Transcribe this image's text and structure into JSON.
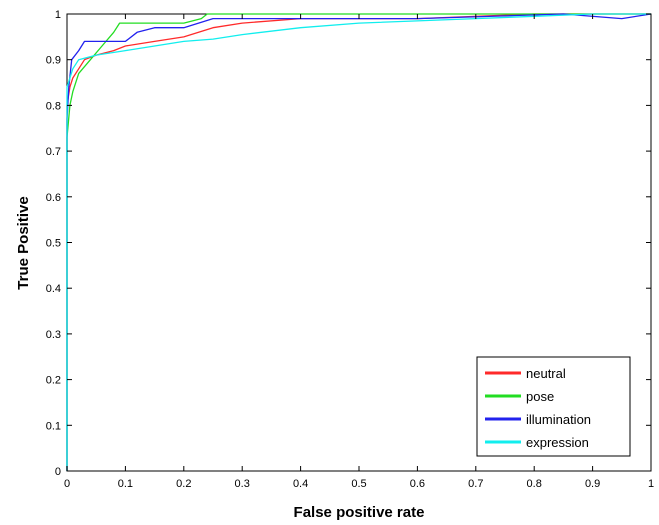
{
  "chart_data": {
    "type": "line",
    "xlabel": "False positive rate",
    "ylabel": "True Positive",
    "xlim": [
      0,
      1
    ],
    "ylim": [
      0,
      1
    ],
    "x_ticks": [
      "0",
      "0.1",
      "0.2",
      "0.3",
      "0.4",
      "0.5",
      "0.6",
      "0.7",
      "0.8",
      "0.9",
      "1"
    ],
    "y_ticks": [
      "0",
      "0.1",
      "0.2",
      "0.3",
      "0.4",
      "0.5",
      "0.6",
      "0.7",
      "0.8",
      "0.9",
      "1"
    ],
    "grid": false,
    "legend_position": "bottom-right",
    "series": [
      {
        "name": "neutral",
        "color": "#ff2a2a",
        "points": [
          [
            0,
            0
          ],
          [
            0,
            0.8
          ],
          [
            0.005,
            0.84
          ],
          [
            0.01,
            0.86
          ],
          [
            0.02,
            0.88
          ],
          [
            0.03,
            0.9
          ],
          [
            0.05,
            0.91
          ],
          [
            0.08,
            0.92
          ],
          [
            0.1,
            0.93
          ],
          [
            0.15,
            0.94
          ],
          [
            0.2,
            0.95
          ],
          [
            0.25,
            0.97
          ],
          [
            0.3,
            0.98
          ],
          [
            0.4,
            0.99
          ],
          [
            0.6,
            0.99
          ],
          [
            0.8,
            1.0
          ],
          [
            0.9,
            1.0
          ],
          [
            1.0,
            1.0
          ]
        ]
      },
      {
        "name": "pose",
        "color": "#22dd22",
        "points": [
          [
            0,
            0
          ],
          [
            0,
            0.73
          ],
          [
            0.005,
            0.8
          ],
          [
            0.01,
            0.83
          ],
          [
            0.02,
            0.87
          ],
          [
            0.04,
            0.9
          ],
          [
            0.06,
            0.93
          ],
          [
            0.08,
            0.96
          ],
          [
            0.09,
            0.98
          ],
          [
            0.15,
            0.98
          ],
          [
            0.2,
            0.98
          ],
          [
            0.23,
            0.99
          ],
          [
            0.24,
            1.0
          ],
          [
            1.0,
            1.0
          ]
        ]
      },
      {
        "name": "illumination",
        "color": "#2222ee",
        "points": [
          [
            0,
            0
          ],
          [
            0,
            0.77
          ],
          [
            0.003,
            0.84
          ],
          [
            0.008,
            0.9
          ],
          [
            0.02,
            0.92
          ],
          [
            0.03,
            0.94
          ],
          [
            0.08,
            0.94
          ],
          [
            0.1,
            0.94
          ],
          [
            0.12,
            0.96
          ],
          [
            0.15,
            0.97
          ],
          [
            0.2,
            0.97
          ],
          [
            0.25,
            0.99
          ],
          [
            0.4,
            0.99
          ],
          [
            0.6,
            0.99
          ],
          [
            0.85,
            1.0
          ],
          [
            0.95,
            0.99
          ],
          [
            1.0,
            1.0
          ]
        ]
      },
      {
        "name": "expression",
        "color": "#11eeee",
        "points": [
          [
            0,
            0
          ],
          [
            0,
            0.84
          ],
          [
            0.005,
            0.86
          ],
          [
            0.01,
            0.88
          ],
          [
            0.02,
            0.9
          ],
          [
            0.05,
            0.91
          ],
          [
            0.1,
            0.92
          ],
          [
            0.15,
            0.93
          ],
          [
            0.2,
            0.94
          ],
          [
            0.25,
            0.945
          ],
          [
            0.3,
            0.955
          ],
          [
            0.4,
            0.97
          ],
          [
            0.5,
            0.98
          ],
          [
            0.6,
            0.985
          ],
          [
            0.7,
            0.99
          ],
          [
            0.8,
            0.995
          ],
          [
            0.9,
            1.0
          ],
          [
            1.0,
            1.0
          ]
        ]
      }
    ]
  }
}
